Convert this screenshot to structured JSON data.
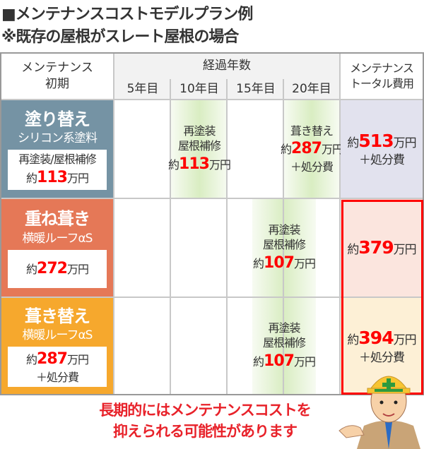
{
  "title": {
    "line1": "■メンテナンスコストモデルプラン例",
    "line2": "※既存の屋根がスレート屋根の場合"
  },
  "header": {
    "initial": [
      "メンテナンス",
      "初期"
    ],
    "elapsed": "経過年数",
    "years": [
      "5年目",
      "10年目",
      "15年目",
      "20年目"
    ],
    "total": [
      "メンテナンス",
      "トータル費用"
    ]
  },
  "rows": [
    {
      "name": "塗り替え",
      "material": "シリコン系塗料",
      "color": "#7593a4",
      "initial_work": "再塗装/屋根補修",
      "initial_prefix": "約",
      "initial_cost": "113",
      "unit": "万円",
      "event1": {
        "line1": "再塗装",
        "line2": "屋根補修",
        "prefix": "約",
        "cost": "113",
        "unit": "万円"
      },
      "event2": {
        "line1": "葺き替え",
        "prefix": "約",
        "cost": "287",
        "unit": "万円",
        "extra": "＋処分費"
      },
      "total_prefix": "約",
      "total": "513",
      "total_unit": "万円",
      "total_extra": "＋処分費",
      "total_bg": "#e2e2ee"
    },
    {
      "name": "重ね葺き",
      "material": "横暖ルーフαS",
      "color": "#e57857",
      "initial_prefix": "約",
      "initial_cost": "272",
      "unit": "万円",
      "event": {
        "line1": "再塗装",
        "line2": "屋根補修",
        "prefix": "約",
        "cost": "107",
        "unit": "万円"
      },
      "total_prefix": "約",
      "total": "379",
      "total_unit": "万円",
      "total_bg": "#fbe5de"
    },
    {
      "name": "葺き替え",
      "material": "横暖ルーフαS",
      "color": "#f6a82d",
      "initial_prefix": "約",
      "initial_cost": "287",
      "unit": "万円",
      "initial_extra": "＋処分費",
      "event": {
        "line1": "再塗装",
        "line2": "屋根補修",
        "prefix": "約",
        "cost": "107",
        "unit": "万円"
      },
      "total_prefix": "約",
      "total": "394",
      "total_unit": "万円",
      "total_extra": "＋処分費",
      "total_bg": "#fdf0d6"
    }
  ],
  "message": {
    "line1": "長期的にはメンテナンスコストを",
    "line2": "抑えられる可能性があります"
  },
  "colors": {
    "highlight_border": "#f00",
    "accent_text": "#f00",
    "message": "#e8222a"
  },
  "illustration": "worker-with-hardhat-pointing"
}
